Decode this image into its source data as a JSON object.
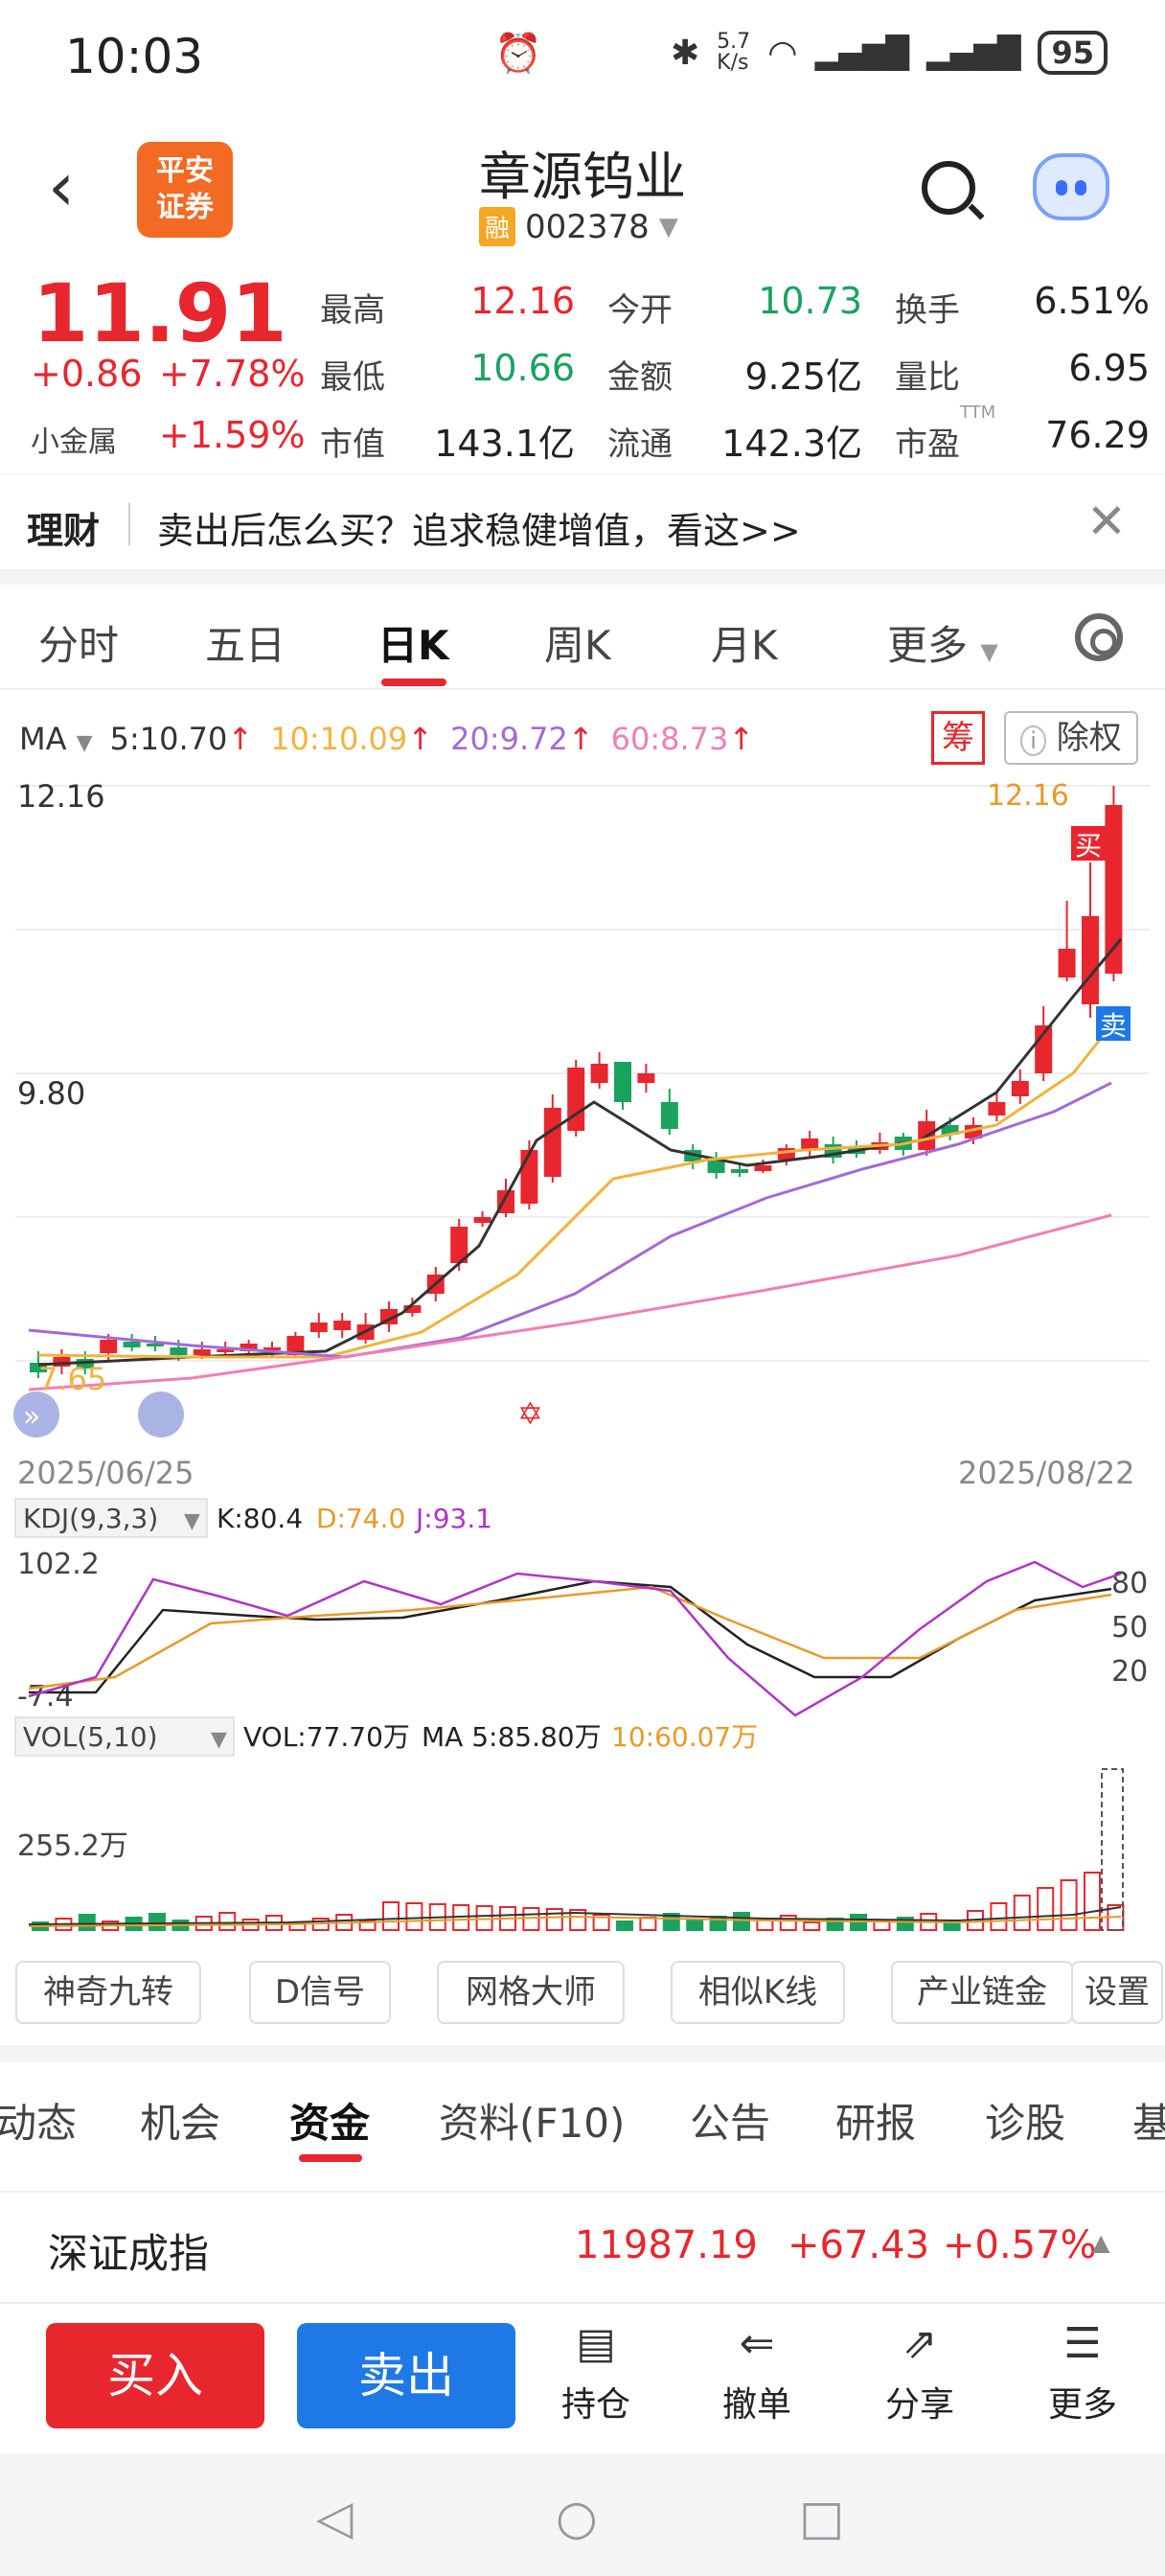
{
  "status": {
    "time": "10:03",
    "net_speed": "5.7\nK/s",
    "battery": "95"
  },
  "header": {
    "title": "章源钨业",
    "rong_badge": "融",
    "code": "002378",
    "broker_logo": "平安\n证券"
  },
  "quote": {
    "price": "11.91",
    "change": "+0.86",
    "change_pct": "+7.78%",
    "sector_label": "小金属",
    "sector_pct": "+1.59%",
    "stats": [
      {
        "label": "最高",
        "value": "12.16",
        "color": "red"
      },
      {
        "label": "最低",
        "value": "10.66",
        "color": "green"
      },
      {
        "label": "市值",
        "value": "143.1亿",
        "color": "dark"
      },
      {
        "label": "今开",
        "value": "10.73",
        "color": "green"
      },
      {
        "label": "金额",
        "value": "9.25亿",
        "color": "dark"
      },
      {
        "label": "流通",
        "value": "142.3亿",
        "color": "dark"
      },
      {
        "label": "换手",
        "value": "6.51%",
        "color": "dark"
      },
      {
        "label": "量比",
        "value": "6.95",
        "color": "dark"
      },
      {
        "label": "市盈",
        "value": "76.29",
        "color": "dark"
      }
    ],
    "ttm": "TTM"
  },
  "banner": {
    "label": "理财",
    "text": "卖出后怎么买？追求稳健增值，看这>>"
  },
  "ktabs": [
    "分时",
    "五日",
    "日K",
    "周K",
    "月K",
    "更多"
  ],
  "ma": {
    "label": "MA",
    "ma5": "5:10.70",
    "ma10": "10:10.09",
    "ma20": "20:9.72",
    "ma60": "60:8.73",
    "chou": "筹",
    "chuquan": "除权"
  },
  "chart_data": {
    "type": "candlestick",
    "y_top_label": "12.16",
    "y_mid_label": "9.80",
    "y_low_label": "7.65",
    "high_marker": "12.16",
    "date_start": "2025/06/25",
    "date_end": "2025/08/22",
    "buy_tag": "买",
    "sell_tag": "卖",
    "kdj": {
      "label": "KDJ(9,3,3)",
      "k": "K:80.4",
      "d": "D:74.0",
      "j": "J:93.1",
      "top": "102.2",
      "bottom": "-7.4",
      "levels": [
        "80",
        "50",
        "20"
      ]
    },
    "vol": {
      "label": "VOL(5,10)",
      "vol": "VOL:77.70万",
      "ma5": "MA 5:85.80万",
      "ma10": "10:60.07万",
      "top": "255.2万"
    }
  },
  "feature_tabs": [
    "神奇九转",
    "D信号",
    "网格大师",
    "相似K线",
    "产业链金",
    "设置"
  ],
  "info_tabs": [
    "动态",
    "机会",
    "资金",
    "资料(F10)",
    "公告",
    "研报",
    "诊股",
    "基"
  ],
  "index": {
    "name": "深证成指",
    "value": "11987.19",
    "change": "+67.43",
    "pct": "+0.57%"
  },
  "bottom": {
    "buy": "买入",
    "sell": "卖出",
    "actions": [
      "持仓",
      "撤单",
      "分享",
      "更多"
    ]
  },
  "colors": {
    "up": "#e8262e",
    "down": "#1aa35e",
    "ma5": "#333333",
    "ma10": "#f2b33d",
    "ma20": "#a36ad6",
    "ma60": "#f07fb4"
  }
}
